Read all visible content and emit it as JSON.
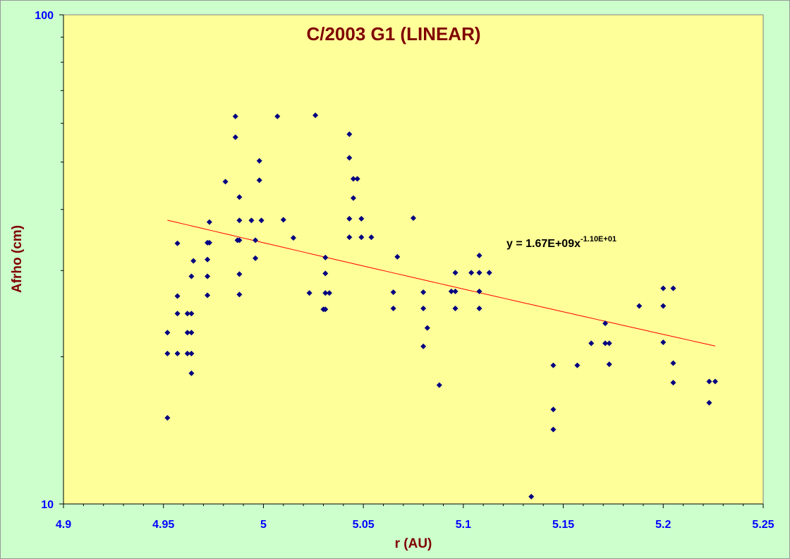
{
  "chart_data": {
    "type": "scatter",
    "title": "C/2003 G1 (LINEAR)",
    "xlabel": "r (AU)",
    "ylabel": "Afrho (cm)",
    "xlim": [
      4.9,
      5.25
    ],
    "ylim": [
      10,
      100
    ],
    "y_scale": "log",
    "x_ticks": [
      4.9,
      4.95,
      5.0,
      5.05,
      5.1,
      5.15,
      5.2,
      5.25
    ],
    "x_tick_labels": [
      "4.9",
      "4.95",
      "5",
      "5.05",
      "5.1",
      "5.15",
      "5.2",
      "5.25"
    ],
    "y_ticks": [
      10,
      100
    ],
    "y_tick_labels": [
      "10",
      "100"
    ],
    "grid": false,
    "colors": {
      "plot_bg": "#ffff99",
      "page_bg": "#ccffcc",
      "points": "#000080",
      "trend": "#ff0000",
      "title": "#800000",
      "ticks": "#0000ff"
    },
    "trendline": {
      "type": "power",
      "a": 1670000000.0,
      "b": -11.0,
      "x_range": [
        4.952,
        5.226
      ],
      "equation_main": "y = 1.67E+09x",
      "equation_exp": "-1.10E+01"
    },
    "series": [
      {
        "points": [
          [
            4.952,
            22.4
          ],
          [
            4.952,
            20.3
          ],
          [
            4.952,
            15.0
          ],
          [
            4.957,
            34.1
          ],
          [
            4.957,
            26.6
          ],
          [
            4.957,
            24.5
          ],
          [
            4.957,
            20.3
          ],
          [
            4.962,
            24.5
          ],
          [
            4.962,
            22.4
          ],
          [
            4.962,
            20.3
          ],
          [
            4.964,
            29.2
          ],
          [
            4.964,
            24.5
          ],
          [
            4.964,
            22.4
          ],
          [
            4.964,
            20.3
          ],
          [
            4.964,
            18.5
          ],
          [
            4.965,
            31.4
          ],
          [
            4.972,
            34.2
          ],
          [
            4.972,
            31.6
          ],
          [
            4.972,
            29.2
          ],
          [
            4.972,
            26.7
          ],
          [
            4.973,
            37.7
          ],
          [
            4.973,
            34.2
          ],
          [
            4.981,
            45.6
          ],
          [
            4.986,
            62.0
          ],
          [
            4.986,
            56.2
          ],
          [
            4.987,
            34.6
          ],
          [
            4.988,
            42.4
          ],
          [
            4.988,
            38.0
          ],
          [
            4.988,
            34.6
          ],
          [
            4.988,
            29.5
          ],
          [
            4.988,
            26.8
          ],
          [
            4.994,
            38.0
          ],
          [
            4.996,
            34.6
          ],
          [
            4.996,
            31.8
          ],
          [
            4.998,
            50.3
          ],
          [
            4.998,
            45.9
          ],
          [
            4.999,
            38.0
          ],
          [
            5.007,
            62.0
          ],
          [
            5.01,
            38.1
          ],
          [
            5.015,
            35.0
          ],
          [
            5.023,
            27.0
          ],
          [
            5.026,
            62.3
          ],
          [
            5.03,
            25.0
          ],
          [
            5.031,
            31.9
          ],
          [
            5.031,
            29.6
          ],
          [
            5.031,
            27.0
          ],
          [
            5.031,
            25.0
          ],
          [
            5.033,
            27.0
          ],
          [
            5.043,
            57.0
          ],
          [
            5.043,
            51.0
          ],
          [
            5.043,
            38.3
          ],
          [
            5.043,
            35.1
          ],
          [
            5.045,
            46.2
          ],
          [
            5.045,
            42.2
          ],
          [
            5.047,
            46.2
          ],
          [
            5.049,
            38.3
          ],
          [
            5.049,
            35.1
          ],
          [
            5.054,
            35.1
          ],
          [
            5.065,
            27.1
          ],
          [
            5.065,
            25.1
          ],
          [
            5.067,
            32.0
          ],
          [
            5.075,
            38.4
          ],
          [
            5.08,
            27.1
          ],
          [
            5.08,
            25.1
          ],
          [
            5.08,
            21.0
          ],
          [
            5.082,
            22.9
          ],
          [
            5.088,
            17.5
          ],
          [
            5.094,
            27.2
          ],
          [
            5.096,
            29.7
          ],
          [
            5.096,
            27.2
          ],
          [
            5.096,
            25.1
          ],
          [
            5.104,
            29.7
          ],
          [
            5.108,
            32.2
          ],
          [
            5.108,
            29.7
          ],
          [
            5.108,
            27.2
          ],
          [
            5.108,
            25.1
          ],
          [
            5.113,
            29.7
          ],
          [
            5.134,
            10.35
          ],
          [
            5.145,
            19.2
          ],
          [
            5.145,
            15.6
          ],
          [
            5.145,
            14.2
          ],
          [
            5.157,
            19.2
          ],
          [
            5.164,
            21.3
          ],
          [
            5.171,
            23.4
          ],
          [
            5.171,
            21.3
          ],
          [
            5.173,
            21.3
          ],
          [
            5.173,
            19.3
          ],
          [
            5.188,
            25.4
          ],
          [
            5.2,
            27.6
          ],
          [
            5.2,
            25.4
          ],
          [
            5.2,
            21.4
          ],
          [
            5.205,
            27.6
          ],
          [
            5.205,
            19.4
          ],
          [
            5.205,
            17.7
          ],
          [
            5.223,
            17.8
          ],
          [
            5.223,
            16.1
          ],
          [
            5.226,
            17.8
          ]
        ]
      }
    ]
  }
}
